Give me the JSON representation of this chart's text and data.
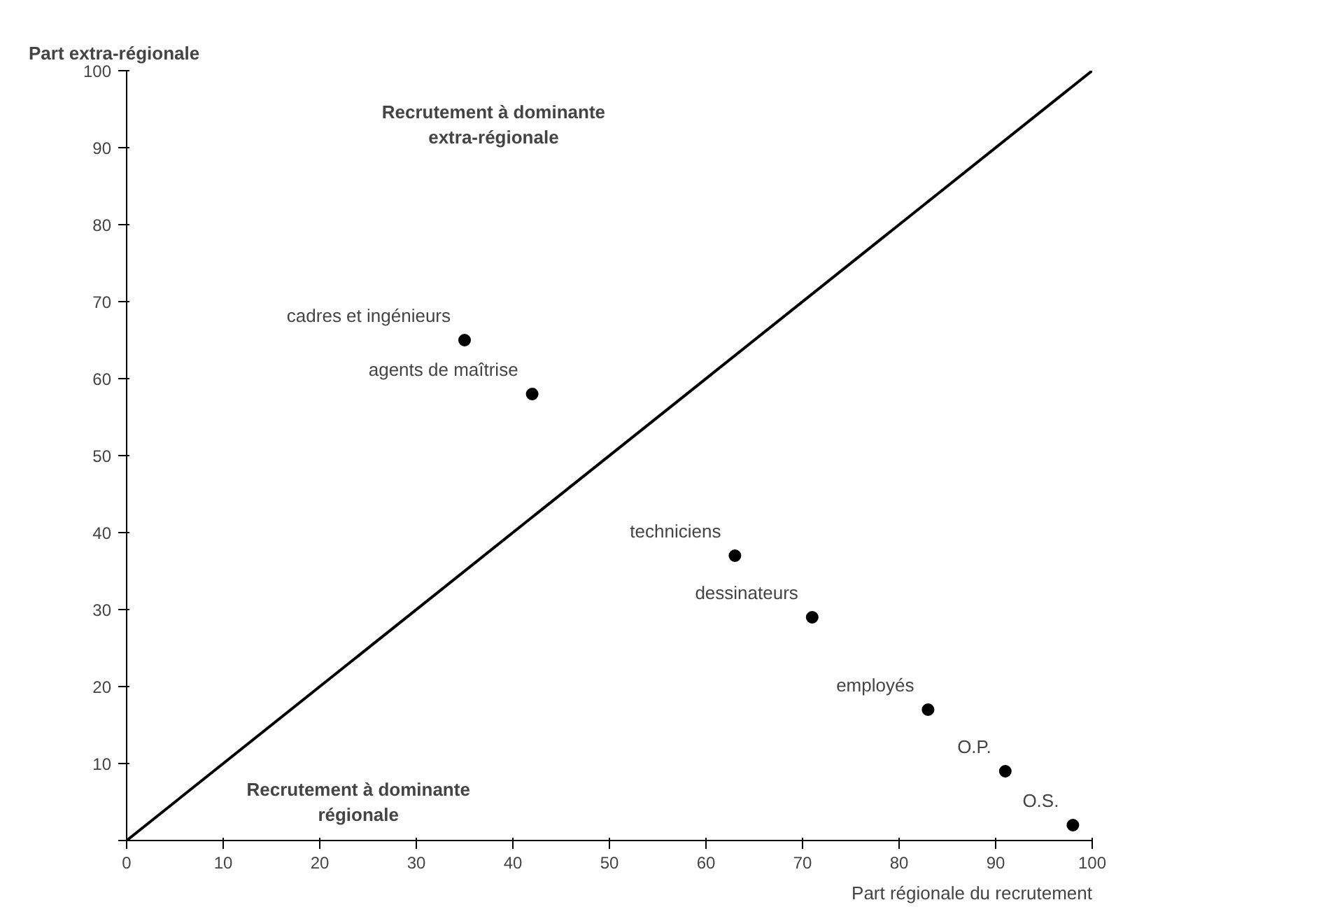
{
  "chart_data": {
    "type": "scatter",
    "xlabel": "Part régionale du recrutement",
    "ylabel": "Part extra-régionale",
    "xlim": [
      0,
      100
    ],
    "ylim": [
      0,
      100
    ],
    "xticks": [
      0,
      10,
      20,
      30,
      40,
      50,
      60,
      70,
      80,
      90,
      100
    ],
    "yticks": [
      {
        "value": 0,
        "label": null
      },
      10,
      20,
      30,
      40,
      50,
      60,
      70,
      80,
      90,
      100
    ],
    "grid": false,
    "marker": "circle",
    "series": [
      {
        "color": "#000000",
        "x": [
          35,
          42,
          63,
          71,
          83,
          91,
          98
        ],
        "values": [
          65,
          58,
          37,
          29,
          17,
          9,
          2
        ]
      },
      {
        "type": "line",
        "color": "#000000",
        "line_style": "solid",
        "marker": "none",
        "x": [
          0,
          100
        ],
        "values": [
          0,
          100
        ]
      }
    ],
    "annotations": [
      "Recrutement à dominante\nextra-régionale",
      "Recrutement à dominante\nrégionale",
      {
        "text": "cadres et ingénieurs",
        "x": 35,
        "y": 65
      },
      {
        "text": "agents de maîtrise",
        "x": 42,
        "y": 58
      },
      {
        "text": "techniciens",
        "x": 63,
        "y": 37
      },
      {
        "text": "dessinateurs",
        "x": 71,
        "y": 29
      },
      {
        "text": "employés",
        "x": 83,
        "y": 17
      },
      {
        "text": "O.P.",
        "x": 91,
        "y": 9
      },
      {
        "text": "O.S.",
        "x": 98,
        "y": 2
      }
    ]
  }
}
